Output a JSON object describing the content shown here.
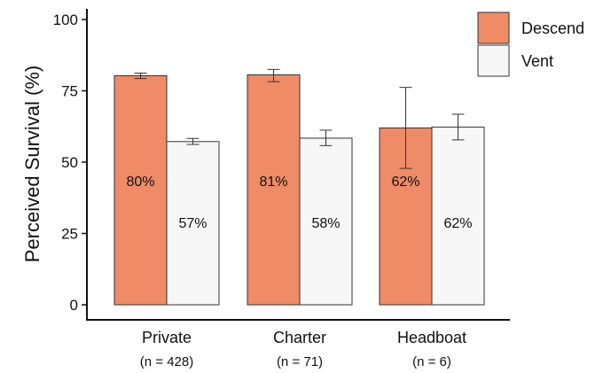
{
  "chart_data": {
    "type": "bar",
    "categories": [
      "Private",
      "Charter",
      "Headboat"
    ],
    "category_sublabels": [
      "(n = 428)",
      "(n = 71)",
      "(n = 6)"
    ],
    "series": [
      {
        "name": "Descend",
        "color": "#ef8b66",
        "values": [
          80.3,
          80.6,
          62.0
        ],
        "error_low": [
          79.3,
          78.2,
          47.8
        ],
        "error_high": [
          81.2,
          82.5,
          76.2
        ],
        "data_labels": [
          "80%",
          "81%",
          "62%"
        ]
      },
      {
        "name": "Vent",
        "color": "#f7f7f7",
        "values": [
          57.2,
          58.4,
          62.3
        ],
        "error_low": [
          56.2,
          55.8,
          57.8
        ],
        "error_high": [
          58.3,
          61.2,
          66.8
        ],
        "data_labels": [
          "57%",
          "58%",
          "62%"
        ]
      }
    ],
    "title": "",
    "xlabel": "",
    "ylabel": "Perceived Survival (%)",
    "ylim": [
      0,
      100
    ],
    "yticks": [
      0,
      25,
      50,
      75,
      100
    ],
    "grid": false,
    "legend_position": "top-right"
  }
}
